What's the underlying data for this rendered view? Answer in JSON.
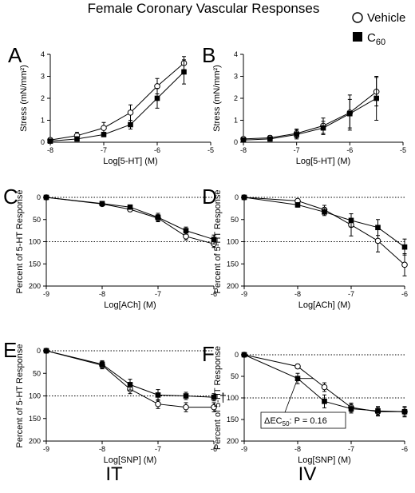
{
  "figure": {
    "title": "Female Coronary Vascular Responses",
    "legend": [
      {
        "label": "Vehicle",
        "marker": "open-circle",
        "color": "#ffffff"
      },
      {
        "label": "C",
        "subscript": "60",
        "marker": "filled-square",
        "color": "#000000"
      }
    ],
    "bottom_labels": [
      "IT",
      "IV"
    ]
  },
  "chart_data": [
    {
      "panel": "A",
      "type": "line",
      "xlabel": "Log[5-HT] (M)",
      "ylabel": "Stress (mN/mm²)",
      "xlim": [
        -8,
        -5
      ],
      "ylim": [
        0,
        4
      ],
      "y_inverted": false,
      "xticks": [
        -8,
        -7,
        -6,
        -5
      ],
      "yticks": [
        0,
        1,
        2,
        3,
        4
      ],
      "ref_lines": [],
      "series": [
        {
          "name": "Vehicle",
          "x": [
            -8,
            -7.5,
            -7,
            -6.5,
            -6,
            -5.5
          ],
          "values": [
            0.1,
            0.3,
            0.65,
            1.35,
            2.55,
            3.6
          ],
          "errors": [
            0.1,
            0.15,
            0.25,
            0.35,
            0.35,
            0.3
          ]
        },
        {
          "name": "C60",
          "x": [
            -8,
            -7.5,
            -7,
            -6.5,
            -6,
            -5.5
          ],
          "values": [
            0.05,
            0.15,
            0.35,
            0.8,
            2.0,
            3.2
          ],
          "errors": [
            0.05,
            0.1,
            0.1,
            0.2,
            0.45,
            0.55
          ]
        }
      ]
    },
    {
      "panel": "B",
      "type": "line",
      "xlabel": "Log[5-HT] (M)",
      "ylabel": "Stress (mN/mm²)",
      "xlim": [
        -8,
        -5
      ],
      "ylim": [
        0,
        4
      ],
      "y_inverted": false,
      "xticks": [
        -8,
        -7,
        -6,
        -5
      ],
      "yticks": [
        0,
        1,
        2,
        3,
        4
      ],
      "ref_lines": [],
      "series": [
        {
          "name": "Vehicle",
          "x": [
            -8,
            -7.5,
            -7,
            -6.5,
            -6,
            -5.5
          ],
          "values": [
            0.15,
            0.2,
            0.4,
            0.75,
            1.35,
            2.3
          ],
          "errors": [
            0.05,
            0.1,
            0.2,
            0.35,
            0.8,
            0.65
          ]
        },
        {
          "name": "C60",
          "x": [
            -8,
            -7.5,
            -7,
            -6.5,
            -6,
            -5.5
          ],
          "values": [
            0.1,
            0.15,
            0.35,
            0.65,
            1.3,
            2.0
          ],
          "errors": [
            0.05,
            0.1,
            0.2,
            0.3,
            0.65,
            1.0
          ]
        }
      ]
    },
    {
      "panel": "C",
      "type": "line",
      "xlabel": "Log[ACh] (M)",
      "ylabel": "Percent of 5-HT Response",
      "xlim": [
        -9,
        -6
      ],
      "ylim": [
        0,
        200
      ],
      "y_inverted": true,
      "xticks": [
        -9,
        -8,
        -7,
        -6
      ],
      "yticks": [
        0,
        50,
        100,
        150,
        200
      ],
      "ref_lines": [
        0,
        100
      ],
      "series": [
        {
          "name": "Vehicle",
          "x": [
            -9,
            -8,
            -7.5,
            -7,
            -6.5,
            -6
          ],
          "values": [
            0,
            15,
            27,
            47,
            88,
            105
          ],
          "errors": [
            0,
            3,
            5,
            8,
            8,
            8
          ]
        },
        {
          "name": "C60",
          "x": [
            -9,
            -8,
            -7.5,
            -7,
            -6.5,
            -6
          ],
          "values": [
            0,
            14,
            22,
            45,
            75,
            95
          ],
          "errors": [
            0,
            3,
            5,
            9,
            8,
            10
          ]
        }
      ]
    },
    {
      "panel": "D",
      "type": "line",
      "xlabel": "Log[ACh] (M)",
      "ylabel": "Percent of 5-HT Response",
      "xlim": [
        -9,
        -6
      ],
      "ylim": [
        0,
        200
      ],
      "y_inverted": true,
      "xticks": [
        -9,
        -8,
        -7,
        -6
      ],
      "yticks": [
        0,
        50,
        100,
        150,
        200
      ],
      "ref_lines": [
        0,
        100
      ],
      "series": [
        {
          "name": "Vehicle",
          "x": [
            -9,
            -8,
            -7.5,
            -7,
            -6.5,
            -6
          ],
          "values": [
            0,
            8,
            28,
            62,
            98,
            152
          ],
          "errors": [
            0,
            4,
            10,
            25,
            25,
            25
          ]
        },
        {
          "name": "C60",
          "x": [
            -9,
            -8,
            -7.5,
            -7,
            -6.5,
            -6
          ],
          "values": [
            0,
            17,
            33,
            52,
            68,
            112
          ],
          "errors": [
            0,
            5,
            8,
            15,
            18,
            18
          ]
        }
      ]
    },
    {
      "panel": "E",
      "type": "line",
      "xlabel": "Log[SNP] (M)",
      "ylabel": "Percent of 5-HT Response",
      "xlim": [
        -9,
        -6
      ],
      "ylim": [
        0,
        200
      ],
      "y_inverted": true,
      "xticks": [
        -9,
        -8,
        -7,
        -6
      ],
      "yticks": [
        0,
        50,
        100,
        150,
        200
      ],
      "ref_lines": [
        0,
        100
      ],
      "annotation": "†",
      "series": [
        {
          "name": "Vehicle",
          "x": [
            -9,
            -8,
            -7.5,
            -7,
            -6.5,
            -6
          ],
          "values": [
            0,
            32,
            85,
            118,
            125,
            125
          ],
          "errors": [
            0,
            8,
            10,
            10,
            10,
            10
          ]
        },
        {
          "name": "C60",
          "x": [
            -9,
            -8,
            -7.5,
            -7,
            -6.5,
            -6
          ],
          "values": [
            0,
            30,
            75,
            98,
            100,
            103
          ],
          "errors": [
            0,
            8,
            12,
            12,
            8,
            8
          ]
        }
      ]
    },
    {
      "panel": "F",
      "type": "line",
      "xlabel": "Log[SNP] (M)",
      "ylabel": "Percent of 5-HT Response",
      "xlim": [
        -9,
        -6
      ],
      "ylim": [
        0,
        200
      ],
      "y_inverted": true,
      "xticks": [
        -9,
        -8,
        -7,
        -6
      ],
      "yticks": [
        0,
        50,
        100,
        150,
        200
      ],
      "ref_lines": [
        0,
        100
      ],
      "annotation": "ΔEC50: P = 0.16",
      "series": [
        {
          "name": "Vehicle",
          "x": [
            -9,
            -8,
            -7.5,
            -7,
            -6.5,
            -6
          ],
          "values": [
            0,
            27,
            75,
            122,
            132,
            132
          ],
          "errors": [
            0,
            5,
            10,
            10,
            10,
            10
          ]
        },
        {
          "name": "C60",
          "x": [
            -9,
            -8,
            -7.5,
            -7,
            -6.5,
            -6
          ],
          "values": [
            0,
            55,
            108,
            125,
            130,
            132
          ],
          "errors": [
            0,
            12,
            15,
            10,
            10,
            12
          ]
        }
      ]
    }
  ]
}
